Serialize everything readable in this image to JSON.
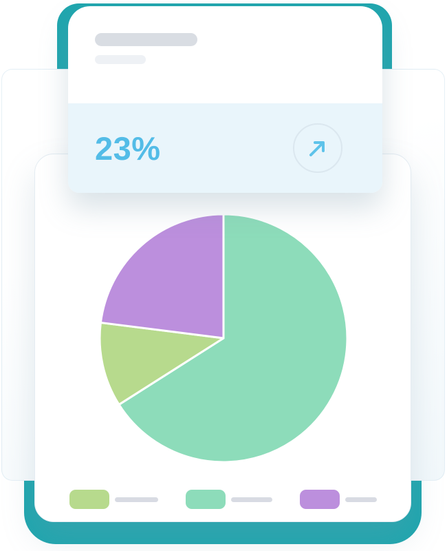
{
  "stat_card": {
    "value": "23%",
    "value_color": "#53bce7",
    "action_icon": "arrow-up-right",
    "skeleton_lines": 2
  },
  "chart_data": {
    "type": "pie",
    "title": "",
    "slices": [
      {
        "name": "slice-mint",
        "value": 66,
        "color": "#8ddcba"
      },
      {
        "name": "slice-lime",
        "value": 11,
        "color": "#b7da8d"
      },
      {
        "name": "slice-purple",
        "value": 23,
        "color": "#bc8fdd"
      }
    ],
    "start_angle_deg": 0,
    "direction": "clockwise",
    "slice_gap_color": "#ffffff",
    "legend": {
      "position": "bottom",
      "style": "skeleton",
      "items": [
        {
          "color": "#b7da8d",
          "line_width": 63
        },
        {
          "color": "#8ddcba",
          "line_width": 60
        },
        {
          "color": "#bc8fdd",
          "line_width": 46
        }
      ]
    }
  },
  "colors": {
    "teal_backdrop": "#1fa6ae",
    "accent_blue": "#53bce7",
    "stat_footer_bg": "#e9f5fb",
    "skeleton_dark": "#d9dde3",
    "skeleton_light": "#eef1f5",
    "legend_line": "#d8dbe3",
    "card_border": "#e4ecf2"
  }
}
